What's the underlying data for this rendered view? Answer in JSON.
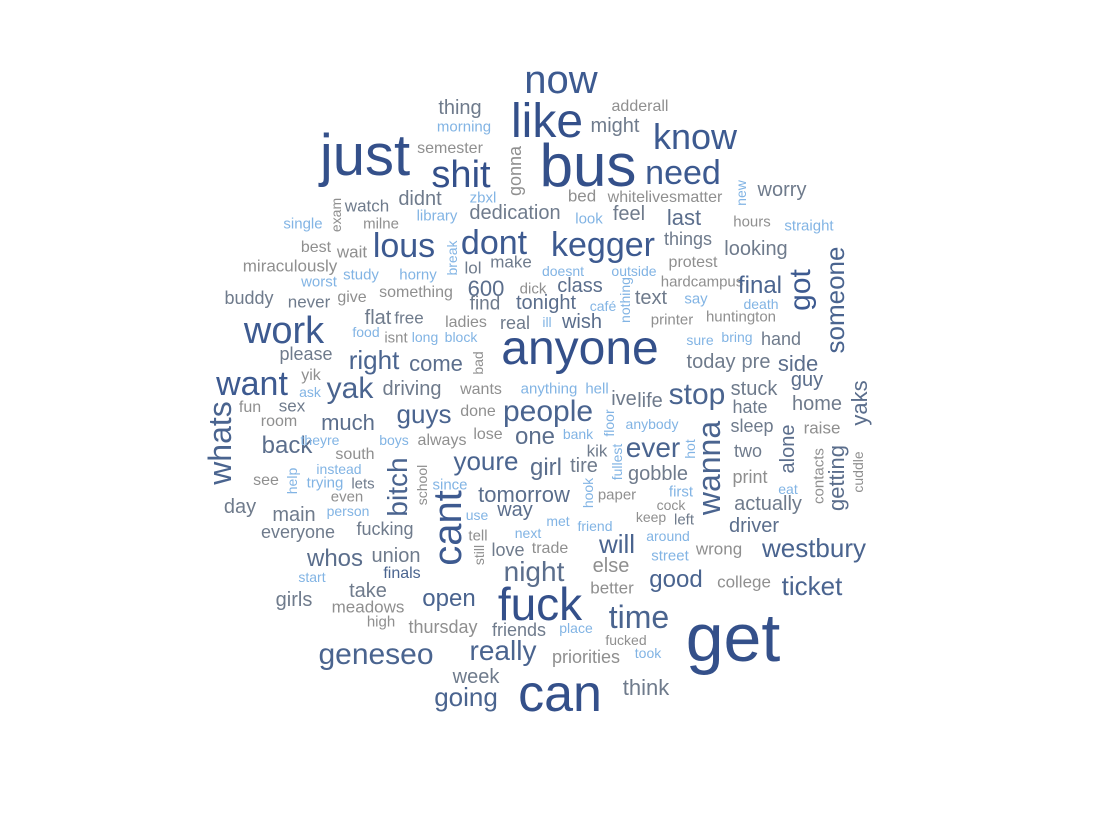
{
  "palette": {
    "xxl": "#34508a",
    "xl": "#3d5a90",
    "l": "#4a648f",
    "m": "#5b6e8c",
    "s": "#6f7b8c",
    "xs": "#8f8f8f",
    "blue": "#82b4e4"
  },
  "words": [
    {
      "t": "now",
      "c": "xl"
    },
    {
      "t": "like",
      "c": "xxl"
    },
    {
      "t": "just",
      "c": "xxl"
    },
    {
      "t": "bus",
      "c": "xxl"
    },
    {
      "t": "know",
      "c": "xl"
    },
    {
      "t": "shit",
      "c": "xxl"
    },
    {
      "t": "need",
      "c": "xl"
    },
    {
      "t": "thing",
      "c": "s"
    },
    {
      "t": "adderall",
      "c": "xs"
    },
    {
      "t": "morning",
      "c": "blue"
    },
    {
      "t": "might",
      "c": "s"
    },
    {
      "t": "semester",
      "c": "xs"
    },
    {
      "t": "gonna",
      "c": "xs"
    },
    {
      "t": "worry",
      "c": "s"
    },
    {
      "t": "bed",
      "c": "xs"
    },
    {
      "t": "whitelivesmatter",
      "c": "xs"
    },
    {
      "t": "new",
      "c": "blue"
    },
    {
      "t": "zbxl",
      "c": "blue"
    },
    {
      "t": "didnt",
      "c": "s"
    },
    {
      "t": "watch",
      "c": "s"
    },
    {
      "t": "exam",
      "c": "xs"
    },
    {
      "t": "dedication",
      "c": "s"
    },
    {
      "t": "feel",
      "c": "s"
    },
    {
      "t": "last",
      "c": "m"
    },
    {
      "t": "hours",
      "c": "xs"
    },
    {
      "t": "single",
      "c": "blue"
    },
    {
      "t": "milne",
      "c": "xs"
    },
    {
      "t": "library",
      "c": "blue"
    },
    {
      "t": "look",
      "c": "blue"
    },
    {
      "t": "straight",
      "c": "blue"
    },
    {
      "t": "lous",
      "c": "xl"
    },
    {
      "t": "dont",
      "c": "xl"
    },
    {
      "t": "kegger",
      "c": "xl"
    },
    {
      "t": "things",
      "c": "s"
    },
    {
      "t": "looking",
      "c": "s"
    },
    {
      "t": "best",
      "c": "xs"
    },
    {
      "t": "wait",
      "c": "xs"
    },
    {
      "t": "break",
      "c": "blue"
    },
    {
      "t": "got",
      "c": "xl"
    },
    {
      "t": "someone",
      "c": "l"
    },
    {
      "t": "miraculously",
      "c": "xs"
    },
    {
      "t": "lol",
      "c": "s"
    },
    {
      "t": "make",
      "c": "s"
    },
    {
      "t": "protest",
      "c": "xs"
    },
    {
      "t": "study",
      "c": "blue"
    },
    {
      "t": "horny",
      "c": "blue"
    },
    {
      "t": "doesnt",
      "c": "blue"
    },
    {
      "t": "outside",
      "c": "blue"
    },
    {
      "t": "worst",
      "c": "blue"
    },
    {
      "t": "hardcampus",
      "c": "xs"
    },
    {
      "t": "final",
      "c": "l"
    },
    {
      "t": "buddy",
      "c": "s"
    },
    {
      "t": "600",
      "c": "m"
    },
    {
      "t": "dick",
      "c": "xs"
    },
    {
      "t": "class",
      "c": "m"
    },
    {
      "t": "nothing",
      "c": "blue"
    },
    {
      "t": "give",
      "c": "xs"
    },
    {
      "t": "something",
      "c": "xs"
    },
    {
      "t": "never",
      "c": "s"
    },
    {
      "t": "find",
      "c": "s"
    },
    {
      "t": "tonight",
      "c": "m"
    },
    {
      "t": "text",
      "c": "s"
    },
    {
      "t": "say",
      "c": "blue"
    },
    {
      "t": "death",
      "c": "blue"
    },
    {
      "t": "café",
      "c": "blue"
    },
    {
      "t": "work",
      "c": "xl"
    },
    {
      "t": "flat",
      "c": "s"
    },
    {
      "t": "free",
      "c": "s"
    },
    {
      "t": "ladies",
      "c": "xs"
    },
    {
      "t": "real",
      "c": "s"
    },
    {
      "t": "ill",
      "c": "blue"
    },
    {
      "t": "wish",
      "c": "m"
    },
    {
      "t": "printer",
      "c": "xs"
    },
    {
      "t": "huntington",
      "c": "xs"
    },
    {
      "t": "food",
      "c": "blue"
    },
    {
      "t": "isnt",
      "c": "xs"
    },
    {
      "t": "long",
      "c": "blue"
    },
    {
      "t": "block",
      "c": "blue"
    },
    {
      "t": "anyone",
      "c": "xxl"
    },
    {
      "t": "sure",
      "c": "blue"
    },
    {
      "t": "bring",
      "c": "blue"
    },
    {
      "t": "hand",
      "c": "s"
    },
    {
      "t": "please",
      "c": "s"
    },
    {
      "t": "right",
      "c": "l"
    },
    {
      "t": "come",
      "c": "m"
    },
    {
      "t": "bad",
      "c": "xs"
    },
    {
      "t": "today",
      "c": "s"
    },
    {
      "t": "pre",
      "c": "s"
    },
    {
      "t": "side",
      "c": "m"
    },
    {
      "t": "want",
      "c": "xl"
    },
    {
      "t": "yik",
      "c": "xs"
    },
    {
      "t": "yak",
      "c": "l"
    },
    {
      "t": "driving",
      "c": "s"
    },
    {
      "t": "wants",
      "c": "xs"
    },
    {
      "t": "anything",
      "c": "blue"
    },
    {
      "t": "hell",
      "c": "blue"
    },
    {
      "t": "stop",
      "c": "l"
    },
    {
      "t": "stuck",
      "c": "s"
    },
    {
      "t": "guy",
      "c": "m"
    },
    {
      "t": "ask",
      "c": "blue"
    },
    {
      "t": "ive",
      "c": "s"
    },
    {
      "t": "life",
      "c": "s"
    },
    {
      "t": "yaks",
      "c": "m"
    },
    {
      "t": "whats",
      "c": "l"
    },
    {
      "t": "sex",
      "c": "s"
    },
    {
      "t": "fun",
      "c": "xs"
    },
    {
      "t": "guys",
      "c": "l"
    },
    {
      "t": "done",
      "c": "xs"
    },
    {
      "t": "people",
      "c": "l"
    },
    {
      "t": "hate",
      "c": "s"
    },
    {
      "t": "home",
      "c": "s"
    },
    {
      "t": "room",
      "c": "xs"
    },
    {
      "t": "much",
      "c": "m"
    },
    {
      "t": "anybody",
      "c": "blue"
    },
    {
      "t": "sleep",
      "c": "s"
    },
    {
      "t": "wanna",
      "c": "l"
    },
    {
      "t": "raise",
      "c": "xs"
    },
    {
      "t": "lose",
      "c": "xs"
    },
    {
      "t": "bank",
      "c": "blue"
    },
    {
      "t": "floor",
      "c": "blue"
    },
    {
      "t": "back",
      "c": "m"
    },
    {
      "t": "theyre",
      "c": "blue"
    },
    {
      "t": "boys",
      "c": "blue"
    },
    {
      "t": "always",
      "c": "xs"
    },
    {
      "t": "one",
      "c": "m"
    },
    {
      "t": "ever",
      "c": "l"
    },
    {
      "t": "alone",
      "c": "m"
    },
    {
      "t": "south",
      "c": "xs"
    },
    {
      "t": "hot",
      "c": "blue"
    },
    {
      "t": "two",
      "c": "s"
    },
    {
      "t": "kik",
      "c": "s"
    },
    {
      "t": "youre",
      "c": "l"
    },
    {
      "t": "bitch",
      "c": "l"
    },
    {
      "t": "girl",
      "c": "m"
    },
    {
      "t": "tire",
      "c": "s"
    },
    {
      "t": "fullest",
      "c": "blue"
    },
    {
      "t": "gobble",
      "c": "s"
    },
    {
      "t": "instead",
      "c": "blue"
    },
    {
      "t": "cuddle",
      "c": "xs"
    },
    {
      "t": "print",
      "c": "xs"
    },
    {
      "t": "contacts",
      "c": "xs"
    },
    {
      "t": "see",
      "c": "xs"
    },
    {
      "t": "lets",
      "c": "s"
    },
    {
      "t": "help",
      "c": "blue"
    },
    {
      "t": "trying",
      "c": "blue"
    },
    {
      "t": "school",
      "c": "xs"
    },
    {
      "t": "since",
      "c": "blue"
    },
    {
      "t": "getting",
      "c": "m"
    },
    {
      "t": "even",
      "c": "xs"
    },
    {
      "t": "tomorrow",
      "c": "m"
    },
    {
      "t": "hook",
      "c": "blue"
    },
    {
      "t": "paper",
      "c": "xs"
    },
    {
      "t": "first",
      "c": "blue"
    },
    {
      "t": "eat",
      "c": "blue"
    },
    {
      "t": "day",
      "c": "s"
    },
    {
      "t": "person",
      "c": "blue"
    },
    {
      "t": "main",
      "c": "s"
    },
    {
      "t": "way",
      "c": "m"
    },
    {
      "t": "use",
      "c": "blue"
    },
    {
      "t": "cock",
      "c": "xs"
    },
    {
      "t": "actually",
      "c": "s"
    },
    {
      "t": "keep",
      "c": "xs"
    },
    {
      "t": "left",
      "c": "s"
    },
    {
      "t": "met",
      "c": "blue"
    },
    {
      "t": "friend",
      "c": "blue"
    },
    {
      "t": "driver",
      "c": "m"
    },
    {
      "t": "everyone",
      "c": "s"
    },
    {
      "t": "fucking",
      "c": "s"
    },
    {
      "t": "tell",
      "c": "xs"
    },
    {
      "t": "next",
      "c": "blue"
    },
    {
      "t": "around",
      "c": "blue"
    },
    {
      "t": "cant",
      "c": "xl"
    },
    {
      "t": "will",
      "c": "l"
    },
    {
      "t": "westbury",
      "c": "l"
    },
    {
      "t": "whos",
      "c": "m"
    },
    {
      "t": "union",
      "c": "s"
    },
    {
      "t": "still",
      "c": "xs"
    },
    {
      "t": "love",
      "c": "s"
    },
    {
      "t": "trade",
      "c": "xs"
    },
    {
      "t": "wrong",
      "c": "xs"
    },
    {
      "t": "street",
      "c": "blue"
    },
    {
      "t": "night",
      "c": "m"
    },
    {
      "t": "else",
      "c": "xs"
    },
    {
      "t": "finals",
      "c": "l"
    },
    {
      "t": "start",
      "c": "blue"
    },
    {
      "t": "good",
      "c": "l"
    },
    {
      "t": "college",
      "c": "xs"
    },
    {
      "t": "ticket",
      "c": "l"
    },
    {
      "t": "take",
      "c": "s"
    },
    {
      "t": "better",
      "c": "xs"
    },
    {
      "t": "girls",
      "c": "s"
    },
    {
      "t": "open",
      "c": "l"
    },
    {
      "t": "meadows",
      "c": "xs"
    },
    {
      "t": "fuck",
      "c": "xxl"
    },
    {
      "t": "time",
      "c": "l"
    },
    {
      "t": "high",
      "c": "xs"
    },
    {
      "t": "thursday",
      "c": "xs"
    },
    {
      "t": "friends",
      "c": "s"
    },
    {
      "t": "place",
      "c": "blue"
    },
    {
      "t": "get",
      "c": "xxl"
    },
    {
      "t": "fucked",
      "c": "xs"
    },
    {
      "t": "geneseo",
      "c": "l"
    },
    {
      "t": "really",
      "c": "l"
    },
    {
      "t": "priorities",
      "c": "xs"
    },
    {
      "t": "took",
      "c": "blue"
    },
    {
      "t": "week",
      "c": "s"
    },
    {
      "t": "think",
      "c": "s"
    },
    {
      "t": "can",
      "c": "xxl"
    },
    {
      "t": "going",
      "c": "l"
    }
  ]
}
